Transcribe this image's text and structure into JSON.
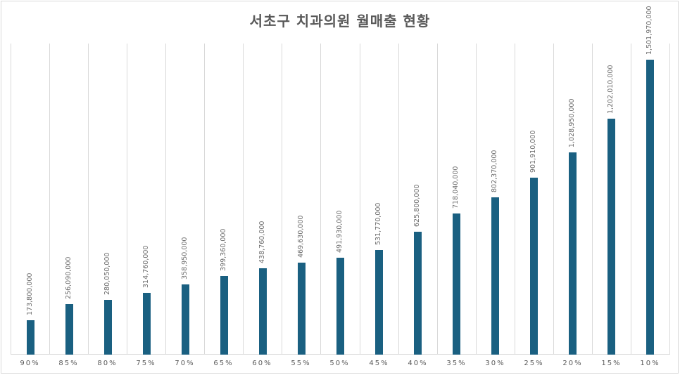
{
  "title": "서초구 치과의원 월매출 현황",
  "colors": {
    "bar": "#1a6081",
    "grid": "#d9d9d9",
    "title": "#595959",
    "label": "#6b6b6b"
  },
  "chart_data": {
    "type": "bar",
    "title": "서초구 치과의원 월매출 현황",
    "xlabel": "",
    "ylabel": "",
    "categories": [
      "90%",
      "85%",
      "80%",
      "75%",
      "70%",
      "65%",
      "60%",
      "55%",
      "50%",
      "45%",
      "40%",
      "35%",
      "30%",
      "25%",
      "20%",
      "15%",
      "10%"
    ],
    "values": [
      173800000,
      256090000,
      280050000,
      314760000,
      358950000,
      399360000,
      438760000,
      469630000,
      491930000,
      531770000,
      625800000,
      718040000,
      802370000,
      901910000,
      1028950000,
      1202010000,
      1501970000
    ],
    "value_labels": [
      "173,800,000",
      "256,090,000",
      "280,050,000",
      "314,760,000",
      "358,950,000",
      "399,360,000",
      "438,760,000",
      "469,630,000",
      "491,930,000",
      "531,770,000",
      "625,800,000",
      "718,040,000",
      "802,370,000",
      "901,910,000",
      "1,028,950,000",
      "1,202,010,000",
      "1,501,970,000"
    ],
    "ylim": [
      0,
      1584000000
    ],
    "grid": "vertical category separators",
    "legend": "none",
    "data_labels": "rotated above bars"
  }
}
